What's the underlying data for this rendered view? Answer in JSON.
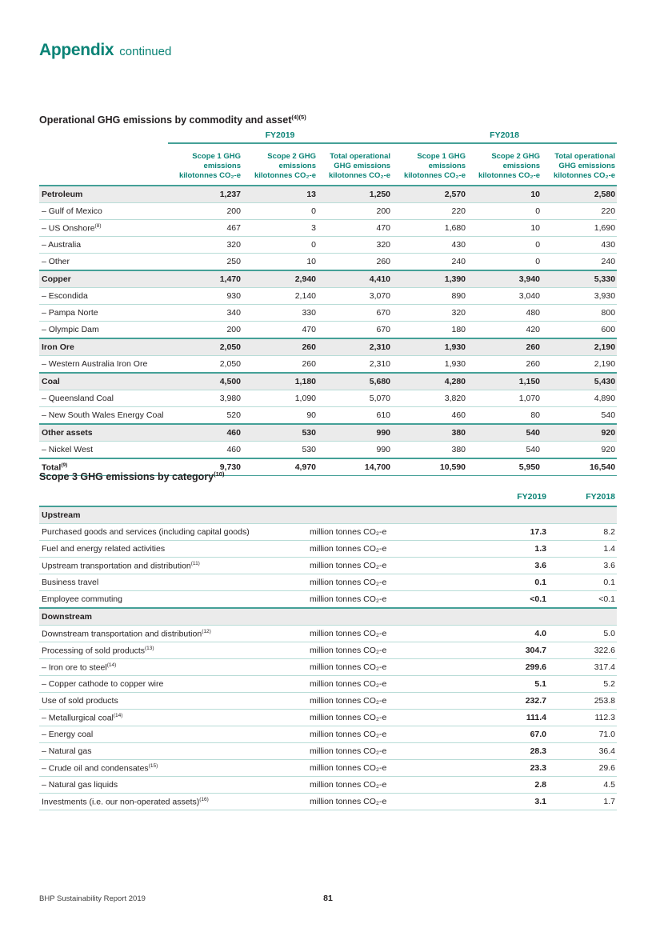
{
  "page": {
    "header_title": "Appendix",
    "header_suffix": "continued",
    "footer_left": "BHP Sustainability Report 2019",
    "page_number": "81"
  },
  "colors": {
    "teal_accent": "#0b8376",
    "rule_dark": "#44a097",
    "rule_light": "#b8dcd7",
    "row_gray": "#ebebeb",
    "text": "#231f20"
  },
  "table1": {
    "title": "Operational GHG emissions by commodity and asset",
    "title_sup": "(4)(5)",
    "year_groups": [
      "FY2019",
      "FY2018"
    ],
    "columns": [
      "Scope 1 GHG\nemissions\nkilotonnes CO₂-e",
      "Scope 2 GHG\nemissions\nkilotonnes CO₂-e",
      "Total operational\nGHG emissions\nkilotonnes CO₂-e",
      "Scope 1 GHG\nemissions\nkilotonnes CO₂-e",
      "Scope 2 GHG\nemissions\nkilotonnes CO₂-e",
      "Total operational\nGHG emissions\nkilotonnes CO₂-e"
    ],
    "rows": [
      {
        "label": "Petroleum",
        "sup": "",
        "type": "group",
        "values": [
          "1,237",
          "13",
          "1,250",
          "2,570",
          "10",
          "2,580"
        ]
      },
      {
        "label": "– Gulf of Mexico",
        "sup": "",
        "type": "sub",
        "values": [
          "200",
          "0",
          "200",
          "220",
          "0",
          "220"
        ]
      },
      {
        "label": "– US Onshore",
        "sup": "(8)",
        "type": "sub",
        "values": [
          "467",
          "3",
          "470",
          "1,680",
          "10",
          "1,690"
        ]
      },
      {
        "label": "– Australia",
        "sup": "",
        "type": "sub",
        "values": [
          "320",
          "0",
          "320",
          "430",
          "0",
          "430"
        ]
      },
      {
        "label": "– Other",
        "sup": "",
        "type": "sub",
        "values": [
          "250",
          "10",
          "260",
          "240",
          "0",
          "240"
        ]
      },
      {
        "label": "Copper",
        "sup": "",
        "type": "group",
        "values": [
          "1,470",
          "2,940",
          "4,410",
          "1,390",
          "3,940",
          "5,330"
        ]
      },
      {
        "label": "– Escondida",
        "sup": "",
        "type": "sub",
        "values": [
          "930",
          "2,140",
          "3,070",
          "890",
          "3,040",
          "3,930"
        ]
      },
      {
        "label": "– Pampa Norte",
        "sup": "",
        "type": "sub",
        "values": [
          "340",
          "330",
          "670",
          "320",
          "480",
          "800"
        ]
      },
      {
        "label": "– Olympic Dam",
        "sup": "",
        "type": "sub",
        "values": [
          "200",
          "470",
          "670",
          "180",
          "420",
          "600"
        ]
      },
      {
        "label": "Iron Ore",
        "sup": "",
        "type": "group",
        "values": [
          "2,050",
          "260",
          "2,310",
          "1,930",
          "260",
          "2,190"
        ]
      },
      {
        "label": "– Western Australia Iron Ore",
        "sup": "",
        "type": "sub",
        "values": [
          "2,050",
          "260",
          "2,310",
          "1,930",
          "260",
          "2,190"
        ]
      },
      {
        "label": "Coal",
        "sup": "",
        "type": "group",
        "values": [
          "4,500",
          "1,180",
          "5,680",
          "4,280",
          "1,150",
          "5,430"
        ]
      },
      {
        "label": "– Queensland Coal",
        "sup": "",
        "type": "sub",
        "values": [
          "3,980",
          "1,090",
          "5,070",
          "3,820",
          "1,070",
          "4,890"
        ]
      },
      {
        "label": "– New South Wales Energy Coal",
        "sup": "",
        "type": "sub",
        "values": [
          "520",
          "90",
          "610",
          "460",
          "80",
          "540"
        ]
      },
      {
        "label": "Other assets",
        "sup": "",
        "type": "group",
        "values": [
          "460",
          "530",
          "990",
          "380",
          "540",
          "920"
        ]
      },
      {
        "label": "– Nickel West",
        "sup": "",
        "type": "sub",
        "values": [
          "460",
          "530",
          "990",
          "380",
          "540",
          "920"
        ]
      },
      {
        "label": "Total",
        "sup": "(9)",
        "type": "total",
        "values": [
          "9,730",
          "4,970",
          "14,700",
          "10,590",
          "5,950",
          "16,540"
        ]
      }
    ]
  },
  "table2": {
    "title": "Scope 3 GHG emissions by category",
    "title_sup": "(10)",
    "col_fy2019": "FY2019",
    "col_fy2018": "FY2018",
    "unit": "million tonnes CO₂-e",
    "rows": [
      {
        "label": "Upstream",
        "sup": "",
        "type": "section",
        "fy2019": "",
        "fy2018": ""
      },
      {
        "label": "Purchased goods and services (including capital goods)",
        "sup": "",
        "type": "row",
        "fy2019": "17.3",
        "fy2018": "8.2"
      },
      {
        "label": "Fuel and energy related activities",
        "sup": "",
        "type": "row",
        "fy2019": "1.3",
        "fy2018": "1.4"
      },
      {
        "label": "Upstream transportation and distribution",
        "sup": "(11)",
        "type": "row",
        "fy2019": "3.6",
        "fy2018": "3.6"
      },
      {
        "label": "Business travel",
        "sup": "",
        "type": "row",
        "fy2019": "0.1",
        "fy2018": "0.1"
      },
      {
        "label": "Employee commuting",
        "sup": "",
        "type": "row",
        "fy2019": "<0.1",
        "fy2018": "<0.1"
      },
      {
        "label": "Downstream",
        "sup": "",
        "type": "section",
        "fy2019": "",
        "fy2018": ""
      },
      {
        "label": "Downstream transportation and distribution",
        "sup": "(12)",
        "type": "row",
        "fy2019": "4.0",
        "fy2018": "5.0"
      },
      {
        "label": "Processing of sold products",
        "sup": "(13)",
        "type": "row",
        "fy2019": "304.7",
        "fy2018": "322.6"
      },
      {
        "label": "– Iron ore to steel",
        "sup": "(14)",
        "type": "row",
        "fy2019": "299.6",
        "fy2018": "317.4"
      },
      {
        "label": "– Copper cathode to copper wire",
        "sup": "",
        "type": "row",
        "fy2019": "5.1",
        "fy2018": "5.2"
      },
      {
        "label": "Use of sold products",
        "sup": "",
        "type": "row",
        "fy2019": "232.7",
        "fy2018": "253.8"
      },
      {
        "label": "– Metallurgical coal",
        "sup": "(14)",
        "type": "row",
        "fy2019": "111.4",
        "fy2018": "112.3"
      },
      {
        "label": "– Energy coal",
        "sup": "",
        "type": "row",
        "fy2019": "67.0",
        "fy2018": "71.0"
      },
      {
        "label": "– Natural gas",
        "sup": "",
        "type": "row",
        "fy2019": "28.3",
        "fy2018": "36.4"
      },
      {
        "label": "– Crude oil and condensates",
        "sup": "(15)",
        "type": "row",
        "fy2019": "23.3",
        "fy2018": "29.6"
      },
      {
        "label": "– Natural gas liquids",
        "sup": "",
        "type": "row",
        "fy2019": "2.8",
        "fy2018": "4.5"
      },
      {
        "label": "Investments (i.e. our non-operated assets)",
        "sup": "(16)",
        "type": "row",
        "fy2019": "3.1",
        "fy2018": "1.7"
      }
    ]
  }
}
